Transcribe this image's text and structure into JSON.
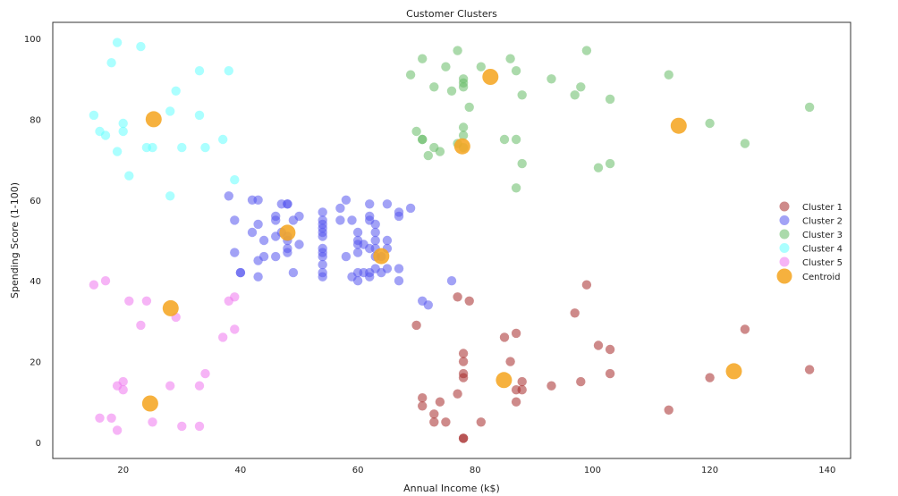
{
  "chart_data": {
    "type": "scatter",
    "title": "Customer Clusters",
    "xlabel": "Annual Income (k$)",
    "ylabel": "Spending Score (1-100)",
    "xlim": [
      8,
      144
    ],
    "ylim": [
      -4,
      104
    ],
    "xticks": [
      20,
      40,
      60,
      80,
      100,
      120,
      140
    ],
    "yticks": [
      0,
      20,
      40,
      60,
      80,
      100
    ],
    "grid": false,
    "legend_position": "center-right",
    "series": [
      {
        "name": "Cluster 1",
        "color": "#a52a2a",
        "points": [
          [
            70,
            29
          ],
          [
            71,
            11
          ],
          [
            71,
            9
          ],
          [
            73,
            5
          ],
          [
            73,
            7
          ],
          [
            74,
            10
          ],
          [
            75,
            5
          ],
          [
            77,
            12
          ],
          [
            77,
            36
          ],
          [
            78,
            22
          ],
          [
            78,
            17
          ],
          [
            78,
            20
          ],
          [
            78,
            16
          ],
          [
            78,
            1
          ],
          [
            78,
            1
          ],
          [
            79,
            35
          ],
          [
            81,
            5
          ],
          [
            85,
            26
          ],
          [
            86,
            20
          ],
          [
            87,
            27
          ],
          [
            87,
            13
          ],
          [
            87,
            10
          ],
          [
            88,
            13
          ],
          [
            88,
            15
          ],
          [
            93,
            14
          ],
          [
            97,
            32
          ],
          [
            98,
            15
          ],
          [
            99,
            39
          ],
          [
            101,
            24
          ],
          [
            103,
            17
          ],
          [
            103,
            23
          ],
          [
            113,
            8
          ],
          [
            120,
            16
          ],
          [
            126,
            28
          ],
          [
            137,
            18
          ]
        ]
      },
      {
        "name": "Cluster 2",
        "color": "#5555ee",
        "points": [
          [
            38,
            61
          ],
          [
            39,
            47
          ],
          [
            39,
            55
          ],
          [
            40,
            42
          ],
          [
            40,
            42
          ],
          [
            42,
            52
          ],
          [
            42,
            60
          ],
          [
            43,
            60
          ],
          [
            43,
            54
          ],
          [
            43,
            45
          ],
          [
            43,
            41
          ],
          [
            44,
            50
          ],
          [
            44,
            46
          ],
          [
            46,
            51
          ],
          [
            46,
            46
          ],
          [
            46,
            56
          ],
          [
            46,
            55
          ],
          [
            47,
            59
          ],
          [
            47,
            52
          ],
          [
            48,
            59
          ],
          [
            48,
            51
          ],
          [
            48,
            59
          ],
          [
            48,
            50
          ],
          [
            48,
            48
          ],
          [
            48,
            47
          ],
          [
            49,
            55
          ],
          [
            49,
            42
          ],
          [
            50,
            49
          ],
          [
            50,
            56
          ],
          [
            54,
            47
          ],
          [
            54,
            54
          ],
          [
            54,
            53
          ],
          [
            54,
            48
          ],
          [
            54,
            52
          ],
          [
            54,
            42
          ],
          [
            54,
            51
          ],
          [
            54,
            55
          ],
          [
            54,
            41
          ],
          [
            54,
            44
          ],
          [
            54,
            57
          ],
          [
            54,
            46
          ],
          [
            57,
            58
          ],
          [
            57,
            55
          ],
          [
            58,
            60
          ],
          [
            58,
            46
          ],
          [
            59,
            55
          ],
          [
            59,
            41
          ],
          [
            60,
            49
          ],
          [
            60,
            40
          ],
          [
            60,
            42
          ],
          [
            60,
            52
          ],
          [
            60,
            47
          ],
          [
            60,
            50
          ],
          [
            61,
            42
          ],
          [
            61,
            49
          ],
          [
            62,
            41
          ],
          [
            62,
            48
          ],
          [
            62,
            59
          ],
          [
            62,
            55
          ],
          [
            62,
            56
          ],
          [
            62,
            42
          ],
          [
            63,
            50
          ],
          [
            63,
            46
          ],
          [
            63,
            43
          ],
          [
            63,
            48
          ],
          [
            63,
            52
          ],
          [
            63,
            54
          ],
          [
            64,
            42
          ],
          [
            64,
            46
          ],
          [
            65,
            48
          ],
          [
            65,
            50
          ],
          [
            65,
            43
          ],
          [
            65,
            59
          ],
          [
            67,
            43
          ],
          [
            67,
            57
          ],
          [
            67,
            56
          ],
          [
            67,
            40
          ],
          [
            69,
            58
          ],
          [
            71,
            35
          ],
          [
            72,
            34
          ],
          [
            76,
            40
          ]
        ]
      },
      {
        "name": "Cluster 3",
        "color": "#66bb66",
        "points": [
          [
            69,
            91
          ],
          [
            70,
            77
          ],
          [
            71,
            95
          ],
          [
            71,
            75
          ],
          [
            71,
            75
          ],
          [
            72,
            71
          ],
          [
            73,
            88
          ],
          [
            73,
            73
          ],
          [
            74,
            72
          ],
          [
            75,
            93
          ],
          [
            76,
            87
          ],
          [
            77,
            97
          ],
          [
            77,
            74
          ],
          [
            78,
            90
          ],
          [
            78,
            88
          ],
          [
            78,
            76
          ],
          [
            78,
            89
          ],
          [
            78,
            78
          ],
          [
            78,
            73
          ],
          [
            79,
            83
          ],
          [
            81,
            93
          ],
          [
            85,
            75
          ],
          [
            86,
            95
          ],
          [
            87,
            63
          ],
          [
            87,
            75
          ],
          [
            87,
            92
          ],
          [
            88,
            86
          ],
          [
            88,
            69
          ],
          [
            93,
            90
          ],
          [
            97,
            86
          ],
          [
            98,
            88
          ],
          [
            99,
            97
          ],
          [
            101,
            68
          ],
          [
            103,
            85
          ],
          [
            103,
            69
          ],
          [
            113,
            91
          ],
          [
            120,
            79
          ],
          [
            126,
            74
          ],
          [
            137,
            83
          ]
        ]
      },
      {
        "name": "Cluster 4",
        "color": "#66ffff",
        "points": [
          [
            15,
            81
          ],
          [
            16,
            77
          ],
          [
            17,
            76
          ],
          [
            18,
            94
          ],
          [
            19,
            72
          ],
          [
            19,
            99
          ],
          [
            20,
            77
          ],
          [
            20,
            79
          ],
          [
            21,
            66
          ],
          [
            23,
            98
          ],
          [
            24,
            73
          ],
          [
            25,
            73
          ],
          [
            28,
            82
          ],
          [
            28,
            61
          ],
          [
            29,
            87
          ],
          [
            30,
            73
          ],
          [
            33,
            92
          ],
          [
            33,
            81
          ],
          [
            34,
            73
          ],
          [
            37,
            75
          ],
          [
            38,
            92
          ],
          [
            39,
            65
          ]
        ]
      },
      {
        "name": "Cluster 5",
        "color": "#ee77ee",
        "points": [
          [
            15,
            39
          ],
          [
            16,
            6
          ],
          [
            17,
            40
          ],
          [
            18,
            6
          ],
          [
            19,
            3
          ],
          [
            19,
            14
          ],
          [
            20,
            15
          ],
          [
            20,
            13
          ],
          [
            21,
            35
          ],
          [
            23,
            29
          ],
          [
            24,
            35
          ],
          [
            25,
            5
          ],
          [
            28,
            14
          ],
          [
            29,
            31
          ],
          [
            30,
            4
          ],
          [
            33,
            4
          ],
          [
            33,
            14
          ],
          [
            34,
            17
          ],
          [
            37,
            26
          ],
          [
            38,
            35
          ],
          [
            39,
            36
          ],
          [
            39,
            28
          ]
        ]
      }
    ],
    "centroids": {
      "name": "Centroid",
      "color": "#f5a623",
      "points": [
        [
          25.2,
          80.0
        ],
        [
          28.1,
          33.2
        ],
        [
          24.6,
          9.6
        ],
        [
          48.0,
          51.9
        ],
        [
          64.0,
          46.1
        ],
        [
          77.8,
          73.3
        ],
        [
          82.6,
          90.5
        ],
        [
          114.7,
          78.4
        ],
        [
          84.9,
          15.4
        ],
        [
          124.1,
          17.6
        ]
      ]
    }
  }
}
